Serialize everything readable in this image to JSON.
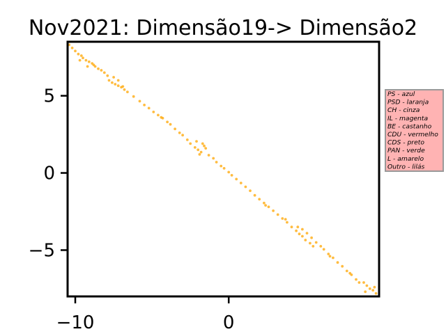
{
  "chart_data": {
    "type": "scatter",
    "title": "Nov2021: Dimensão19-> Dimensão2",
    "xlabel": "",
    "ylabel": "",
    "xlim": [
      -10.5,
      9.8
    ],
    "ylim": [
      -8.0,
      8.5
    ],
    "xticks": [
      -10,
      0
    ],
    "xtick_labels": [
      "−10",
      "0"
    ],
    "yticks": [
      -5,
      0,
      5
    ],
    "ytick_labels": [
      "−5",
      "0",
      "5"
    ],
    "grid": false,
    "point_color": "#ffa500",
    "legend_box": {
      "placement": "right, outside plot",
      "facecolor": "#ffb3b3",
      "edgecolor": "#999999",
      "entries": [
        "PS - azul",
        "PSD - laranja",
        "CH - cinza",
        "IL - magenta",
        "BE - castanho",
        "CDU - vermelho",
        "CDS - preto",
        "PAN - verde",
        "L - amarelo",
        "Outro - lilás"
      ]
    },
    "series": [
      {
        "color": "#ffa500",
        "points": [
          [
            -10.4,
            8.3
          ],
          [
            -10.2,
            8.1
          ],
          [
            -10.0,
            7.9
          ],
          [
            -9.8,
            7.7
          ],
          [
            -9.6,
            7.6
          ],
          [
            -9.5,
            7.45
          ],
          [
            -9.3,
            7.3
          ],
          [
            -9.1,
            7.2
          ],
          [
            -8.9,
            7.1
          ],
          [
            -8.7,
            6.9
          ],
          [
            -8.5,
            6.75
          ],
          [
            -8.3,
            6.65
          ],
          [
            -8.1,
            6.5
          ],
          [
            -7.9,
            6.3
          ],
          [
            -7.8,
            6.0
          ],
          [
            -7.6,
            5.85
          ],
          [
            -7.4,
            5.75
          ],
          [
            -7.2,
            5.65
          ],
          [
            -7.0,
            5.55
          ],
          [
            -6.8,
            5.4
          ],
          [
            -6.6,
            5.25
          ],
          [
            -7.5,
            6.2
          ],
          [
            -7.2,
            6.0
          ],
          [
            -9.7,
            7.3
          ],
          [
            -9.2,
            6.9
          ],
          [
            -6.2,
            4.95
          ],
          [
            -5.8,
            4.65
          ],
          [
            -5.5,
            4.4
          ],
          [
            -5.2,
            4.2
          ],
          [
            -4.9,
            3.95
          ],
          [
            -4.6,
            3.75
          ],
          [
            -4.3,
            3.55
          ],
          [
            -4.0,
            3.3
          ],
          [
            -3.8,
            3.15
          ],
          [
            -3.5,
            2.85
          ],
          [
            -3.2,
            2.6
          ],
          [
            -3.0,
            2.45
          ],
          [
            -2.7,
            2.15
          ],
          [
            -2.5,
            1.9
          ],
          [
            -2.2,
            1.65
          ],
          [
            -2.0,
            1.5
          ],
          [
            -1.8,
            1.35
          ],
          [
            -1.6,
            1.75
          ],
          [
            -1.5,
            1.6
          ],
          [
            -1.7,
            1.9
          ],
          [
            -2.1,
            2.05
          ],
          [
            -1.3,
            1.15
          ],
          [
            -1.0,
            0.95
          ],
          [
            -0.8,
            0.7
          ],
          [
            -0.5,
            0.45
          ],
          [
            -0.3,
            0.3
          ],
          [
            0.0,
            0.05
          ],
          [
            0.2,
            -0.15
          ],
          [
            0.5,
            -0.4
          ],
          [
            0.8,
            -0.65
          ],
          [
            1.1,
            -0.9
          ],
          [
            1.4,
            -1.15
          ],
          [
            1.7,
            -1.45
          ],
          [
            2.0,
            -1.7
          ],
          [
            2.3,
            -1.95
          ],
          [
            2.6,
            -2.2
          ],
          [
            2.9,
            -2.45
          ],
          [
            3.2,
            -2.7
          ],
          [
            3.5,
            -2.95
          ],
          [
            3.8,
            -3.2
          ],
          [
            4.1,
            -3.5
          ],
          [
            4.4,
            -3.75
          ],
          [
            4.6,
            -3.95
          ],
          [
            4.8,
            -4.1
          ],
          [
            5.0,
            -4.35
          ],
          [
            5.3,
            -4.55
          ],
          [
            5.5,
            -4.75
          ],
          [
            4.5,
            -3.5
          ],
          [
            4.8,
            -3.65
          ],
          [
            5.1,
            -3.9
          ],
          [
            5.4,
            -4.2
          ],
          [
            5.7,
            -4.5
          ],
          [
            6.0,
            -4.75
          ],
          [
            6.2,
            -4.95
          ],
          [
            6.5,
            -5.25
          ],
          [
            6.8,
            -5.5
          ],
          [
            7.1,
            -5.8
          ],
          [
            7.4,
            -6.05
          ],
          [
            7.7,
            -6.35
          ],
          [
            8.0,
            -6.6
          ],
          [
            8.3,
            -6.9
          ],
          [
            8.5,
            -7.1
          ],
          [
            8.8,
            -7.1
          ],
          [
            9.0,
            -7.3
          ],
          [
            9.2,
            -7.5
          ],
          [
            9.4,
            -7.6
          ],
          [
            9.6,
            -7.8
          ],
          [
            8.9,
            -7.7
          ],
          [
            9.5,
            -7.4
          ],
          [
            -1.9,
            1.2
          ],
          [
            -8.8,
            7.0
          ],
          [
            -6.9,
            5.6
          ],
          [
            3.7,
            -3.0
          ],
          [
            2.4,
            -2.1
          ],
          [
            -4.4,
            3.6
          ],
          [
            6.6,
            -5.4
          ],
          [
            7.9,
            -6.5
          ]
        ]
      }
    ]
  }
}
